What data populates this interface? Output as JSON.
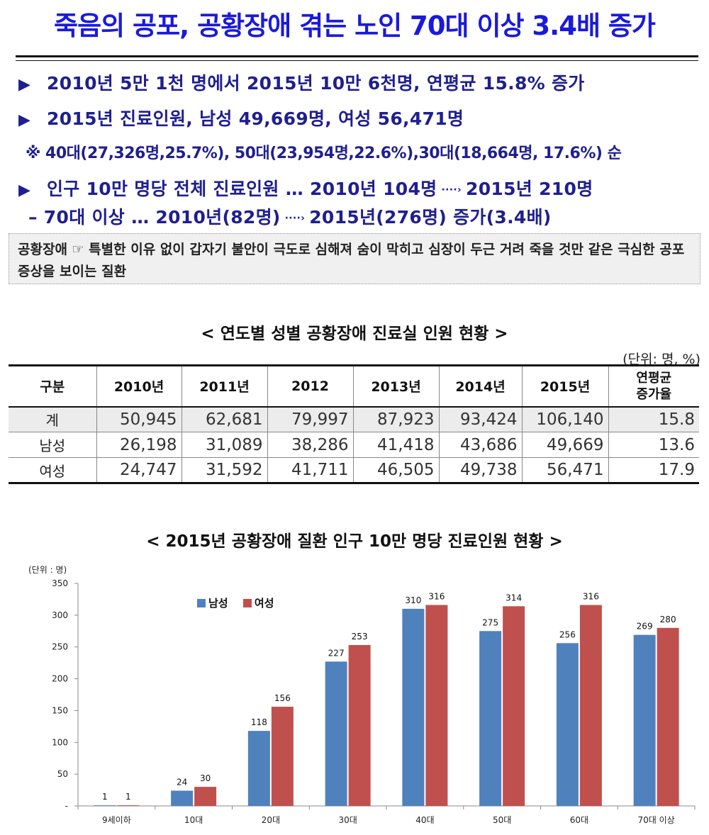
{
  "title": "죽음의 공포, 공황장애 겪는 노인 70대 이상 3.4배 증가",
  "bullets": [
    "2010년 5만 1천 명에서 2015년 10만 6천명, 연평균 15.8% 증가",
    "2015년 진료인원, 남성 49,669명, 여성 56,471명"
  ],
  "note": "※ 40대(27,326명,25.7%), 50대(23,954명,22.6%),30대(18,664명, 17.6%) 순",
  "bullet3": {
    "part1": "인구 10만 명당 전체 진료인원 … 2010년 104명",
    "arrow": "····›",
    "part2": "2015년 210명"
  },
  "bullet4": {
    "part1": "– 70대 이상 … 2010년(82명)",
    "arrow": "····›",
    "part2": "2015년(276명) 증가(3.4배)"
  },
  "definition": "공황장애 ☞ 특별한 이유 없이 갑자기 불안이 극도로 심해져 숨이 막히고 심장이 두근 거려 죽을 것만  같은 극심한 공포 증상을 보이는 질환",
  "table_section": {
    "title": "< 연도별 성별 공황장애 진료실 인원 현황 >",
    "unit": "(단위: 명, %)",
    "headers": [
      "구분",
      "2010년",
      "2011년",
      "2012",
      "2013년",
      "2014년",
      "2015년"
    ],
    "rate_header_1": "연평균",
    "rate_header_2": "증가율",
    "rows": [
      {
        "label": "계",
        "values": [
          "50,945",
          "62,681",
          "79,997",
          "87,923",
          "93,424",
          "106,140"
        ],
        "rate": "15.8"
      },
      {
        "label": "남성",
        "values": [
          "26,198",
          "31,089",
          "38,286",
          "41,418",
          "43,686",
          "49,669"
        ],
        "rate": "13.6"
      },
      {
        "label": "여성",
        "values": [
          "24,747",
          "31,592",
          "41,711",
          "46,505",
          "49,738",
          "56,471"
        ],
        "rate": "17.9"
      }
    ]
  },
  "chart_section": {
    "title": "< 2015년 공황장애 질환 인구 10만 명당 진료인원 현황 >"
  },
  "chart_data": {
    "type": "bar",
    "unit_label": "(단위 : 명)",
    "categories": [
      "9세이하",
      "10대",
      "20대",
      "30대",
      "40대",
      "50대",
      "60대",
      "70대 이상"
    ],
    "series": [
      {
        "name": "남성",
        "color": "#4f81bd",
        "values": [
          1,
          24,
          118,
          227,
          310,
          275,
          256,
          269
        ]
      },
      {
        "name": "여성",
        "color": "#c0504d",
        "values": [
          1,
          30,
          156,
          253,
          316,
          314,
          316,
          280
        ]
      }
    ],
    "ylim": [
      0,
      350
    ],
    "yticks": [
      0,
      50,
      100,
      150,
      200,
      250,
      300,
      350
    ],
    "ytick_labels": [
      "-",
      "50",
      "100",
      "150",
      "200",
      "250",
      "300",
      "350"
    ],
    "legend_position": "top-left",
    "grid": false
  }
}
